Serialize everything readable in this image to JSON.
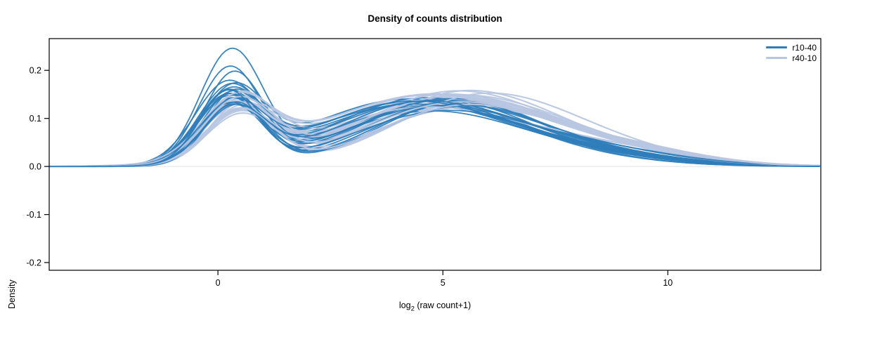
{
  "figure": {
    "title": "Density of counts distribution",
    "ylabel": "Density",
    "xlabel_parts": {
      "pre": "log",
      "sub": "2",
      "post": " (raw count+1)"
    }
  },
  "chart_data": {
    "type": "line",
    "subtype": "density-curves",
    "title": "Density of counts distribution",
    "xlabel": "log2 (raw count+1)",
    "ylabel": "Density",
    "xlim": [
      -3.75,
      13.4
    ],
    "ylim": [
      -0.216,
      0.266
    ],
    "xticks": [
      0,
      5,
      10
    ],
    "yticks": [
      -0.2,
      -0.1,
      0,
      0.1,
      0.2
    ],
    "grid": false,
    "zero_line_color": "#e3e3e3",
    "axis_color": "#000000",
    "legend": {
      "position": "top-right-inside",
      "entries": [
        {
          "label": "r10-40",
          "color": "#2f7ebb"
        },
        {
          "label": "r40-10",
          "color": "#b7c6e2"
        }
      ]
    },
    "curve_model": "each curve = sum of 3 Gaussian components, listed as flat [height1,center1,sigma1,height2,center2,sigma2,height3,center3,sigma3]; x in log2(raw count+1) units, y = density",
    "series": [
      {
        "name": "r40-10",
        "color": "#b7c6e2",
        "line_width": 2.1,
        "curves": [
          [
            0.103,
            0.45,
            0.78,
            0.122,
            4.8,
            2.1,
            0.044,
            7.8,
            2.2
          ],
          [
            0.108,
            0.5,
            0.76,
            0.128,
            5.2,
            2.0,
            0.038,
            8.2,
            2.0
          ],
          [
            0.113,
            0.4,
            0.8,
            0.118,
            4.5,
            2.2,
            0.048,
            7.5,
            2.3
          ],
          [
            0.118,
            0.55,
            0.74,
            0.126,
            5.5,
            1.9,
            0.036,
            8.6,
            1.9
          ],
          [
            0.123,
            0.42,
            0.78,
            0.13,
            4.9,
            2.1,
            0.04,
            8.0,
            2.1
          ],
          [
            0.128,
            0.48,
            0.76,
            0.116,
            5.0,
            2.2,
            0.046,
            7.2,
            2.4
          ],
          [
            0.133,
            0.38,
            0.79,
            0.124,
            4.6,
            2.1,
            0.034,
            8.8,
            1.8
          ],
          [
            0.138,
            0.52,
            0.75,
            0.132,
            5.3,
            1.9,
            0.042,
            7.6,
            2.2
          ],
          [
            0.11,
            0.44,
            0.77,
            0.12,
            4.3,
            2.3,
            0.05,
            7.0,
            2.5
          ],
          [
            0.116,
            0.49,
            0.78,
            0.134,
            5.6,
            1.8,
            0.032,
            9.0,
            1.7
          ],
          [
            0.12,
            0.41,
            0.76,
            0.122,
            4.7,
            2.1,
            0.044,
            7.9,
            2.1
          ],
          [
            0.126,
            0.54,
            0.74,
            0.128,
            5.1,
            2.0,
            0.038,
            8.4,
            1.9
          ],
          [
            0.106,
            0.46,
            0.8,
            0.126,
            4.4,
            2.2,
            0.048,
            7.3,
            2.3
          ],
          [
            0.13,
            0.39,
            0.77,
            0.118,
            5.4,
            2.0,
            0.036,
            8.9,
            1.8
          ],
          [
            0.112,
            0.51,
            0.75,
            0.132,
            4.8,
            2.1,
            0.04,
            7.7,
            2.2
          ],
          [
            0.124,
            0.43,
            0.79,
            0.124,
            5.0,
            2.0,
            0.046,
            7.1,
            2.4
          ],
          [
            0.134,
            0.47,
            0.76,
            0.12,
            4.5,
            2.2,
            0.034,
            8.5,
            1.9
          ],
          [
            0.108,
            0.53,
            0.78,
            0.13,
            5.7,
            1.9,
            0.042,
            8.1,
            2.0
          ],
          [
            0.122,
            0.4,
            0.77,
            0.116,
            4.2,
            2.3,
            0.052,
            6.9,
            2.5
          ],
          [
            0.114,
            0.5,
            0.76,
            0.128,
            5.2,
            2.0,
            0.038,
            8.7,
            1.8
          ],
          [
            0.132,
            0.45,
            0.78,
            0.122,
            4.9,
            2.1,
            0.044,
            7.4,
            2.2
          ],
          [
            0.118,
            0.48,
            0.75,
            0.126,
            5.5,
            1.9,
            0.036,
            9.1,
            1.6
          ]
        ]
      },
      {
        "name": "r10-40",
        "color": "#2f7ebb",
        "line_width": 1.8,
        "curves": [
          [
            0.235,
            0.3,
            0.7,
            0.11,
            4.6,
            2.0,
            0.022,
            8.0,
            2.0
          ],
          [
            0.198,
            0.25,
            0.68,
            0.118,
            4.4,
            1.9,
            0.028,
            7.5,
            2.0
          ],
          [
            0.188,
            0.35,
            0.66,
            0.124,
            4.8,
            2.0,
            0.018,
            8.5,
            1.8
          ],
          [
            0.158,
            0.2,
            0.72,
            0.128,
            4.2,
            2.1,
            0.028,
            7.8,
            2.2
          ],
          [
            0.154,
            0.4,
            0.68,
            0.134,
            5.0,
            1.9,
            0.024,
            8.2,
            2.0
          ],
          [
            0.15,
            0.3,
            0.74,
            0.138,
            4.5,
            2.0,
            0.018,
            7.6,
            1.9
          ],
          [
            0.148,
            0.28,
            0.65,
            0.126,
            5.2,
            1.9,
            0.026,
            8.8,
            1.7
          ],
          [
            0.145,
            0.33,
            0.69,
            0.13,
            4.0,
            2.1,
            0.03,
            7.2,
            2.1
          ],
          [
            0.142,
            0.22,
            0.72,
            0.124,
            4.7,
            2.0,
            0.02,
            8.4,
            1.9
          ],
          [
            0.14,
            0.38,
            0.64,
            0.136,
            5.4,
            1.8,
            0.016,
            9.0,
            1.6
          ],
          [
            0.15,
            0.26,
            0.7,
            0.118,
            4.3,
            2.2,
            0.032,
            7.0,
            2.3
          ],
          [
            0.138,
            0.31,
            0.67,
            0.128,
            5.1,
            1.9,
            0.024,
            8.1,
            1.9
          ],
          [
            0.134,
            0.24,
            0.73,
            0.124,
            4.6,
            2.1,
            0.022,
            8.6,
            1.8
          ],
          [
            0.142,
            0.36,
            0.66,
            0.132,
            4.9,
            1.9,
            0.018,
            7.9,
            2.0
          ],
          [
            0.13,
            0.29,
            0.71,
            0.12,
            4.1,
            2.2,
            0.028,
            7.4,
            2.2
          ],
          [
            0.127,
            0.34,
            0.68,
            0.134,
            5.3,
            1.8,
            0.02,
            8.9,
            1.7
          ],
          [
            0.144,
            0.21,
            0.67,
            0.116,
            4.4,
            2.1,
            0.032,
            6.8,
            2.4
          ],
          [
            0.131,
            0.39,
            0.7,
            0.126,
            5.5,
            1.9,
            0.016,
            9.2,
            1.5
          ],
          [
            0.124,
            0.27,
            0.72,
            0.122,
            4.8,
            2.0,
            0.026,
            8.3,
            1.9
          ],
          [
            0.119,
            0.32,
            0.68,
            0.13,
            4.2,
            2.1,
            0.024,
            7.7,
            2.1
          ],
          [
            0.153,
            0.23,
            0.64,
            0.113,
            5.0,
            2.0,
            0.028,
            8.7,
            1.8
          ],
          [
            0.117,
            0.37,
            0.71,
            0.128,
            4.5,
            1.9,
            0.022,
            7.3,
            2.0
          ]
        ]
      }
    ]
  }
}
